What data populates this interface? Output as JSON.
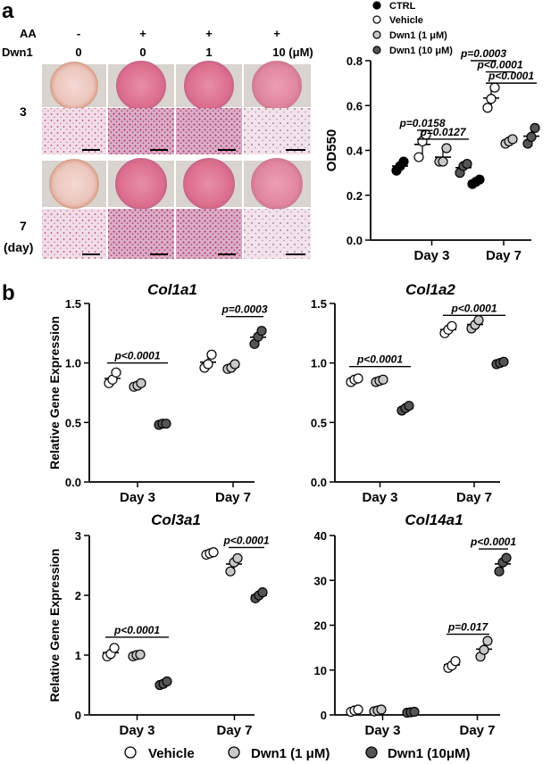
{
  "panel_labels": {
    "a": "a",
    "b": "b"
  },
  "photo_grid": {
    "aa_label": "AA",
    "dwn1_label": "Dwn1",
    "aa_values": [
      "-",
      "+",
      "+",
      "+"
    ],
    "dwn1_values": [
      "0",
      "0",
      "1",
      "10 (μM)"
    ],
    "row_day3": "3",
    "row_day7": "7",
    "day_unit": "(day)"
  },
  "legend_top": [
    {
      "label": "CTRL",
      "fill": "#000000"
    },
    {
      "label": "Vehicle",
      "fill": "#ffffff"
    },
    {
      "label": "Dwn1 (1 μM)",
      "fill": "#c8c8c8"
    },
    {
      "label": "Dwn1 (10 μM)",
      "fill": "#555555"
    }
  ],
  "legend_bottom": [
    {
      "label": "Vehicle",
      "fill": "#ffffff"
    },
    {
      "label": "Dwn1 (1 μM)",
      "fill": "#c8c8c8"
    },
    {
      "label": "Dwn1 (10μM)",
      "fill": "#555555"
    }
  ],
  "chart_data": [
    {
      "id": "od550",
      "type": "scatter",
      "title": "",
      "xlabel": "",
      "ylabel": "OD550",
      "categories": [
        "Day 3",
        "Day 7"
      ],
      "ylim": [
        0.0,
        0.8
      ],
      "yticks": [
        0.0,
        0.2,
        0.4,
        0.6,
        0.8
      ],
      "tick_decimals": 1,
      "series": [
        {
          "name": "CTRL",
          "fill": "#000000",
          "values": [
            [
              0.31,
              0.33,
              0.35
            ],
            [
              0.25,
              0.26,
              0.27
            ]
          ]
        },
        {
          "name": "Vehicle",
          "fill": "#ffffff",
          "values": [
            [
              0.37,
              0.44,
              0.47
            ],
            [
              0.59,
              0.63,
              0.68
            ]
          ]
        },
        {
          "name": "Dwn1 (1 μM)",
          "fill": "#c8c8c8",
          "values": [
            [
              0.35,
              0.35,
              0.41
            ],
            [
              0.43,
              0.44,
              0.45
            ]
          ]
        },
        {
          "name": "Dwn1 (10 μM)",
          "fill": "#555555",
          "values": [
            [
              0.3,
              0.33,
              0.34
            ],
            [
              0.43,
              0.46,
              0.5
            ]
          ]
        }
      ],
      "annotations": [
        {
          "text": "p=0.0158",
          "y": 0.49
        },
        {
          "text": "p=0.0127",
          "y": 0.45
        },
        {
          "text": "p<0.0001",
          "y": 0.7
        },
        {
          "text": "p<0.0001",
          "y": 0.75
        },
        {
          "text": "p=0.0003",
          "y": 0.8
        }
      ]
    },
    {
      "id": "col1a1",
      "type": "scatter",
      "title": "Col1a1",
      "xlabel": "",
      "ylabel": "Relative Gene Expression",
      "categories": [
        "Day 3",
        "Day 7"
      ],
      "ylim": [
        0.0,
        1.5
      ],
      "yticks": [
        0.0,
        0.5,
        1.0,
        1.5
      ],
      "tick_decimals": 1,
      "series": [
        {
          "name": "Vehicle",
          "fill": "#ffffff",
          "values": [
            [
              0.83,
              0.86,
              0.92
            ],
            [
              0.96,
              0.99,
              1.07
            ]
          ]
        },
        {
          "name": "Dwn1 (1 μM)",
          "fill": "#c8c8c8",
          "values": [
            [
              0.8,
              0.81,
              0.83
            ],
            [
              0.95,
              0.96,
              0.99
            ]
          ]
        },
        {
          "name": "Dwn1 (10 μM)",
          "fill": "#555555",
          "values": [
            [
              0.48,
              0.49,
              0.49
            ],
            [
              1.16,
              1.22,
              1.27
            ]
          ]
        }
      ],
      "annotations": [
        {
          "text": "p<0.0001",
          "y": 1.0
        },
        {
          "text": "p=0.0003",
          "y": 1.39
        }
      ]
    },
    {
      "id": "col1a2",
      "type": "scatter",
      "title": "Col1a2",
      "xlabel": "",
      "ylabel": "",
      "categories": [
        "Day 3",
        "Day 7"
      ],
      "ylim": [
        0.0,
        1.5
      ],
      "yticks": [
        0.0,
        0.5,
        1.0,
        1.5
      ],
      "tick_decimals": 1,
      "series": [
        {
          "name": "Vehicle",
          "fill": "#ffffff",
          "values": [
            [
              0.84,
              0.86,
              0.87
            ],
            [
              1.25,
              1.28,
              1.31
            ]
          ]
        },
        {
          "name": "Dwn1 (1 μM)",
          "fill": "#c8c8c8",
          "values": [
            [
              0.84,
              0.85,
              0.86
            ],
            [
              1.29,
              1.32,
              1.36
            ]
          ]
        },
        {
          "name": "Dwn1 (10 μM)",
          "fill": "#555555",
          "values": [
            [
              0.6,
              0.62,
              0.64
            ],
            [
              0.99,
              1.0,
              1.01
            ]
          ]
        }
      ],
      "annotations": [
        {
          "text": "p<0.0001",
          "y": 0.97
        },
        {
          "text": "p<0.0001",
          "y": 1.4
        }
      ]
    },
    {
      "id": "col3a1",
      "type": "scatter",
      "title": "Col3a1",
      "xlabel": "",
      "ylabel": "Relative Gene Expression",
      "categories": [
        "Day 3",
        "Day 7"
      ],
      "ylim": [
        0,
        3
      ],
      "yticks": [
        0,
        1,
        2,
        3
      ],
      "tick_decimals": 0,
      "series": [
        {
          "name": "Vehicle",
          "fill": "#ffffff",
          "values": [
            [
              0.98,
              1.02,
              1.12
            ],
            [
              2.68,
              2.7,
              2.72
            ]
          ]
        },
        {
          "name": "Dwn1 (1 μM)",
          "fill": "#c8c8c8",
          "values": [
            [
              0.98,
              1.0,
              1.01
            ],
            [
              2.4,
              2.55,
              2.62
            ]
          ]
        },
        {
          "name": "Dwn1 (10 μM)",
          "fill": "#555555",
          "values": [
            [
              0.5,
              0.52,
              0.56
            ],
            [
              1.95,
              2.0,
              2.05
            ]
          ]
        }
      ],
      "annotations": [
        {
          "text": "p<0.0001",
          "y": 1.3
        },
        {
          "text": "p<0.0001",
          "y": 2.8
        }
      ]
    },
    {
      "id": "col14a1",
      "type": "scatter",
      "title": "Col14a1",
      "xlabel": "",
      "ylabel": "",
      "categories": [
        "Day 3",
        "Day 7"
      ],
      "ylim": [
        0,
        40
      ],
      "yticks": [
        0,
        10,
        20,
        30,
        40
      ],
      "tick_decimals": 0,
      "series": [
        {
          "name": "Vehicle",
          "fill": "#ffffff",
          "values": [
            [
              0.7,
              1.0,
              1.2
            ],
            [
              10.5,
              11.0,
              12.0
            ]
          ]
        },
        {
          "name": "Dwn1 (1 μM)",
          "fill": "#c8c8c8",
          "values": [
            [
              0.8,
              1.0,
              1.2
            ],
            [
              13.0,
              14.5,
              16.5
            ]
          ]
        },
        {
          "name": "Dwn1 (10 μM)",
          "fill": "#555555",
          "values": [
            [
              0.5,
              0.6,
              0.7
            ],
            [
              32.0,
              34.0,
              35.0
            ]
          ]
        }
      ],
      "annotations": [
        {
          "text": "p=0.017",
          "y": 18.0
        },
        {
          "text": "p<0.0001",
          "y": 37.0
        }
      ]
    }
  ]
}
